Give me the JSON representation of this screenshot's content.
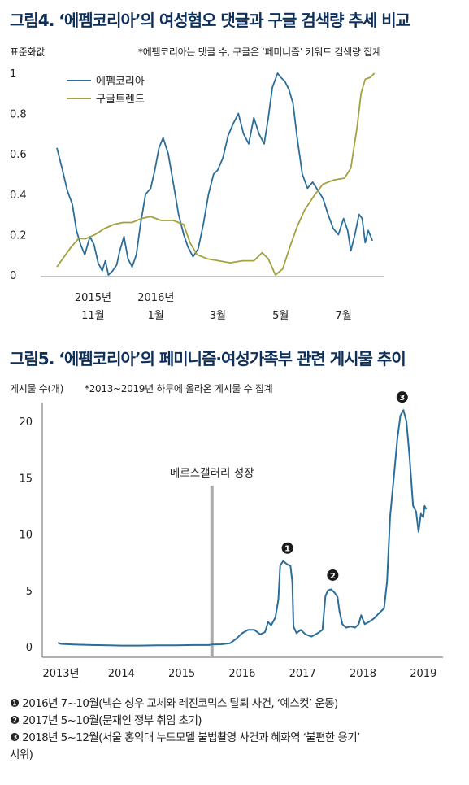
{
  "figure4": {
    "title": "그림4. ‘에펨코리아’의 여성혐오 댓글과 구글 검색량 추세 비교",
    "ylabel": "표준화값",
    "source_note": "*에펨코리아는 댓글 수, 구글은 ‘페미니즘’ 키워드 검색량 집계",
    "chart_data": {
      "type": "line",
      "title": "그림4. ‘에펨코리아’의 여성혐오 댓글과 구글 검색량 추세 비교",
      "ylabel": "표준화값",
      "xlabel": "",
      "ylim": [
        0,
        1
      ],
      "y_ticks": [
        "0",
        "0.2",
        "0.4",
        "0.6",
        "0.8",
        "1"
      ],
      "x_ticks": [
        {
          "at": "2015-11",
          "lines": [
            "2015년",
            "11월"
          ]
        },
        {
          "at": "2016-01",
          "lines": [
            "2016년",
            "1월"
          ]
        },
        {
          "at": "2016-03",
          "lines": [
            "",
            "3월"
          ]
        },
        {
          "at": "2016-05",
          "lines": [
            "",
            "5월"
          ]
        },
        {
          "at": "2016-07",
          "lines": [
            "",
            "7월"
          ]
        }
      ],
      "legend_position": "top-left",
      "grid": false,
      "series": [
        {
          "name": "에펨코리아",
          "color": "#2b6e99",
          "points": [
            [
              "2015-10-01",
              0.63
            ],
            [
              "2015-10-06",
              0.53
            ],
            [
              "2015-10-11",
              0.42
            ],
            [
              "2015-10-16",
              0.35
            ],
            [
              "2015-10-20",
              0.22
            ],
            [
              "2015-10-24",
              0.15
            ],
            [
              "2015-10-28",
              0.1
            ],
            [
              "2015-11-02",
              0.19
            ],
            [
              "2015-11-06",
              0.15
            ],
            [
              "2015-11-10",
              0.06
            ],
            [
              "2015-11-14",
              0.02
            ],
            [
              "2015-11-17",
              0.07
            ],
            [
              "2015-11-20",
              0.0
            ],
            [
              "2015-11-24",
              0.02
            ],
            [
              "2015-11-28",
              0.05
            ],
            [
              "2015-12-01",
              0.12
            ],
            [
              "2015-12-05",
              0.19
            ],
            [
              "2015-12-09",
              0.08
            ],
            [
              "2015-12-13",
              0.04
            ],
            [
              "2015-12-17",
              0.1
            ],
            [
              "2015-12-21",
              0.25
            ],
            [
              "2015-12-26",
              0.4
            ],
            [
              "2015-12-31",
              0.43
            ],
            [
              "2016-01-04",
              0.52
            ],
            [
              "2016-01-08",
              0.63
            ],
            [
              "2016-01-12",
              0.68
            ],
            [
              "2016-01-17",
              0.6
            ],
            [
              "2016-01-22",
              0.45
            ],
            [
              "2016-01-27",
              0.3
            ],
            [
              "2016-02-01",
              0.2
            ],
            [
              "2016-02-05",
              0.14
            ],
            [
              "2016-02-10",
              0.09
            ],
            [
              "2016-02-15",
              0.13
            ],
            [
              "2016-02-20",
              0.25
            ],
            [
              "2016-02-25",
              0.4
            ],
            [
              "2016-03-01",
              0.5
            ],
            [
              "2016-03-05",
              0.52
            ],
            [
              "2016-03-10",
              0.58
            ],
            [
              "2016-03-15",
              0.69
            ],
            [
              "2016-03-20",
              0.75
            ],
            [
              "2016-03-25",
              0.8
            ],
            [
              "2016-03-30",
              0.7
            ],
            [
              "2016-04-04",
              0.65
            ],
            [
              "2016-04-09",
              0.78
            ],
            [
              "2016-04-14",
              0.7
            ],
            [
              "2016-04-19",
              0.65
            ],
            [
              "2016-04-23",
              0.78
            ],
            [
              "2016-04-27",
              0.93
            ],
            [
              "2016-05-02",
              1.0
            ],
            [
              "2016-05-05",
              0.98
            ],
            [
              "2016-05-09",
              0.96
            ],
            [
              "2016-05-13",
              0.92
            ],
            [
              "2016-05-17",
              0.85
            ],
            [
              "2016-05-21",
              0.68
            ],
            [
              "2016-05-26",
              0.5
            ],
            [
              "2016-05-31",
              0.43
            ],
            [
              "2016-06-05",
              0.46
            ],
            [
              "2016-06-10",
              0.42
            ],
            [
              "2016-06-15",
              0.38
            ],
            [
              "2016-06-20",
              0.3
            ],
            [
              "2016-06-25",
              0.23
            ],
            [
              "2016-06-30",
              0.2
            ],
            [
              "2016-07-05",
              0.28
            ],
            [
              "2016-07-09",
              0.22
            ],
            [
              "2016-07-12",
              0.12
            ],
            [
              "2016-07-16",
              0.2
            ],
            [
              "2016-07-20",
              0.3
            ],
            [
              "2016-07-23",
              0.28
            ],
            [
              "2016-07-26",
              0.16
            ],
            [
              "2016-07-29",
              0.22
            ],
            [
              "2016-08-02",
              0.17
            ]
          ]
        },
        {
          "name": "구글트렌드",
          "color": "#a2a33c",
          "points": [
            [
              "2015-10-01",
              0.04
            ],
            [
              "2015-10-08",
              0.09
            ],
            [
              "2015-10-15",
              0.14
            ],
            [
              "2015-10-22",
              0.18
            ],
            [
              "2015-10-29",
              0.18
            ],
            [
              "2015-11-07",
              0.2
            ],
            [
              "2015-11-16",
              0.23
            ],
            [
              "2015-11-25",
              0.25
            ],
            [
              "2015-12-04",
              0.26
            ],
            [
              "2015-12-13",
              0.26
            ],
            [
              "2015-12-22",
              0.28
            ],
            [
              "2015-12-31",
              0.29
            ],
            [
              "2016-01-10",
              0.27
            ],
            [
              "2016-01-22",
              0.27
            ],
            [
              "2016-02-01",
              0.25
            ],
            [
              "2016-02-07",
              0.16
            ],
            [
              "2016-02-14",
              0.1
            ],
            [
              "2016-02-24",
              0.08
            ],
            [
              "2016-03-06",
              0.07
            ],
            [
              "2016-03-17",
              0.06
            ],
            [
              "2016-03-29",
              0.07
            ],
            [
              "2016-04-09",
              0.07
            ],
            [
              "2016-04-17",
              0.11
            ],
            [
              "2016-04-23",
              0.08
            ],
            [
              "2016-04-30",
              0.0
            ],
            [
              "2016-05-07",
              0.03
            ],
            [
              "2016-05-14",
              0.14
            ],
            [
              "2016-05-21",
              0.24
            ],
            [
              "2016-05-28",
              0.32
            ],
            [
              "2016-06-06",
              0.39
            ],
            [
              "2016-06-15",
              0.45
            ],
            [
              "2016-06-25",
              0.47
            ],
            [
              "2016-07-06",
              0.48
            ],
            [
              "2016-07-12",
              0.53
            ],
            [
              "2016-07-18",
              0.73
            ],
            [
              "2016-07-22",
              0.9
            ],
            [
              "2016-07-26",
              0.97
            ],
            [
              "2016-07-31",
              0.98
            ],
            [
              "2016-08-04",
              1.0
            ]
          ]
        }
      ]
    }
  },
  "figure5": {
    "title": "그림5. ‘에펨코리아’의 페미니즘·여성가족부 관련 게시물 추이",
    "ylabel": "게시물 수(개)",
    "source_note": "*2013~2019년 하루에 올라온 게시물 수 집계",
    "chart_data": {
      "type": "line",
      "title": "그림5. ‘에펨코리아’의 페미니즘·여성가족부 관련 게시물 추이",
      "ylabel": "게시물 수(개)",
      "xlabel": "",
      "ylim": [
        0,
        22
      ],
      "y_ticks": [
        0,
        5,
        10,
        15,
        20
      ],
      "x_ticks": [
        "2013년",
        "2014",
        "2015",
        "2016",
        "2017",
        "2018",
        "2019"
      ],
      "grid": false,
      "annotations": [
        {
          "type": "vline",
          "x": 2015.5,
          "label": "메르스갤러리 성장",
          "color": "#ababab"
        },
        {
          "type": "marker",
          "label": "1",
          "x": 2016.75,
          "y": 7.6
        },
        {
          "type": "marker",
          "label": "2",
          "x": 2017.5,
          "y": 5.2
        },
        {
          "type": "marker",
          "label": "3",
          "x": 2018.65,
          "y": 21.0
        }
      ],
      "series": [
        {
          "name": "",
          "color": "#2b6e99",
          "points": [
            [
              2012.95,
              0.35
            ],
            [
              2013.0,
              0.25
            ],
            [
              2013.2,
              0.2
            ],
            [
              2013.5,
              0.15
            ],
            [
              2013.8,
              0.12
            ],
            [
              2014.0,
              0.1
            ],
            [
              2014.3,
              0.1
            ],
            [
              2014.6,
              0.12
            ],
            [
              2014.9,
              0.12
            ],
            [
              2015.2,
              0.15
            ],
            [
              2015.45,
              0.15
            ],
            [
              2015.5,
              0.2
            ],
            [
              2015.65,
              0.22
            ],
            [
              2015.8,
              0.3
            ],
            [
              2015.9,
              0.7
            ],
            [
              2016.0,
              1.2
            ],
            [
              2016.1,
              1.5
            ],
            [
              2016.2,
              1.5
            ],
            [
              2016.3,
              1.1
            ],
            [
              2016.38,
              1.3
            ],
            [
              2016.43,
              2.2
            ],
            [
              2016.48,
              1.9
            ],
            [
              2016.55,
              2.6
            ],
            [
              2016.6,
              4.2
            ],
            [
              2016.63,
              7.2
            ],
            [
              2016.68,
              7.6
            ],
            [
              2016.75,
              7.3
            ],
            [
              2016.8,
              7.2
            ],
            [
              2016.83,
              5.8
            ],
            [
              2016.85,
              1.8
            ],
            [
              2016.9,
              1.2
            ],
            [
              2016.97,
              1.5
            ],
            [
              2017.05,
              1.1
            ],
            [
              2017.15,
              0.9
            ],
            [
              2017.25,
              1.2
            ],
            [
              2017.33,
              1.5
            ],
            [
              2017.38,
              4.5
            ],
            [
              2017.42,
              5.0
            ],
            [
              2017.47,
              5.1
            ],
            [
              2017.53,
              4.8
            ],
            [
              2017.58,
              4.4
            ],
            [
              2017.61,
              3.2
            ],
            [
              2017.66,
              2.0
            ],
            [
              2017.72,
              1.7
            ],
            [
              2017.8,
              1.8
            ],
            [
              2017.87,
              1.7
            ],
            [
              2017.93,
              2.0
            ],
            [
              2017.97,
              2.8
            ],
            [
              2018.03,
              2.0
            ],
            [
              2018.1,
              2.2
            ],
            [
              2018.18,
              2.5
            ],
            [
              2018.27,
              3.0
            ],
            [
              2018.35,
              3.4
            ],
            [
              2018.4,
              5.8
            ],
            [
              2018.45,
              11.5
            ],
            [
              2018.52,
              15.5
            ],
            [
              2018.57,
              18.5
            ],
            [
              2018.62,
              20.5
            ],
            [
              2018.67,
              21.0
            ],
            [
              2018.72,
              20.0
            ],
            [
              2018.77,
              17.0
            ],
            [
              2018.83,
              12.5
            ],
            [
              2018.88,
              12.0
            ],
            [
              2018.92,
              10.2
            ],
            [
              2018.96,
              11.8
            ],
            [
              2019.0,
              11.5
            ],
            [
              2019.02,
              12.5
            ],
            [
              2019.05,
              12.2
            ]
          ]
        }
      ]
    }
  },
  "notes": [
    {
      "marker": "❶",
      "text": "2016년 7~10월(넥슨 성우 교체와 레진코믹스 탈퇴 사건, ‘예스컷’ 운동)"
    },
    {
      "marker": "❷",
      "text": "2017년 5~10월(문재인 정부 취임 초기)"
    },
    {
      "marker": "❸",
      "text": "2018년 5~12월(서울 홍익대 누드모델 불법촬영 사건과 혜화역 ‘불편한 용기’"
    },
    {
      "marker": "",
      "text": "시위)"
    }
  ]
}
